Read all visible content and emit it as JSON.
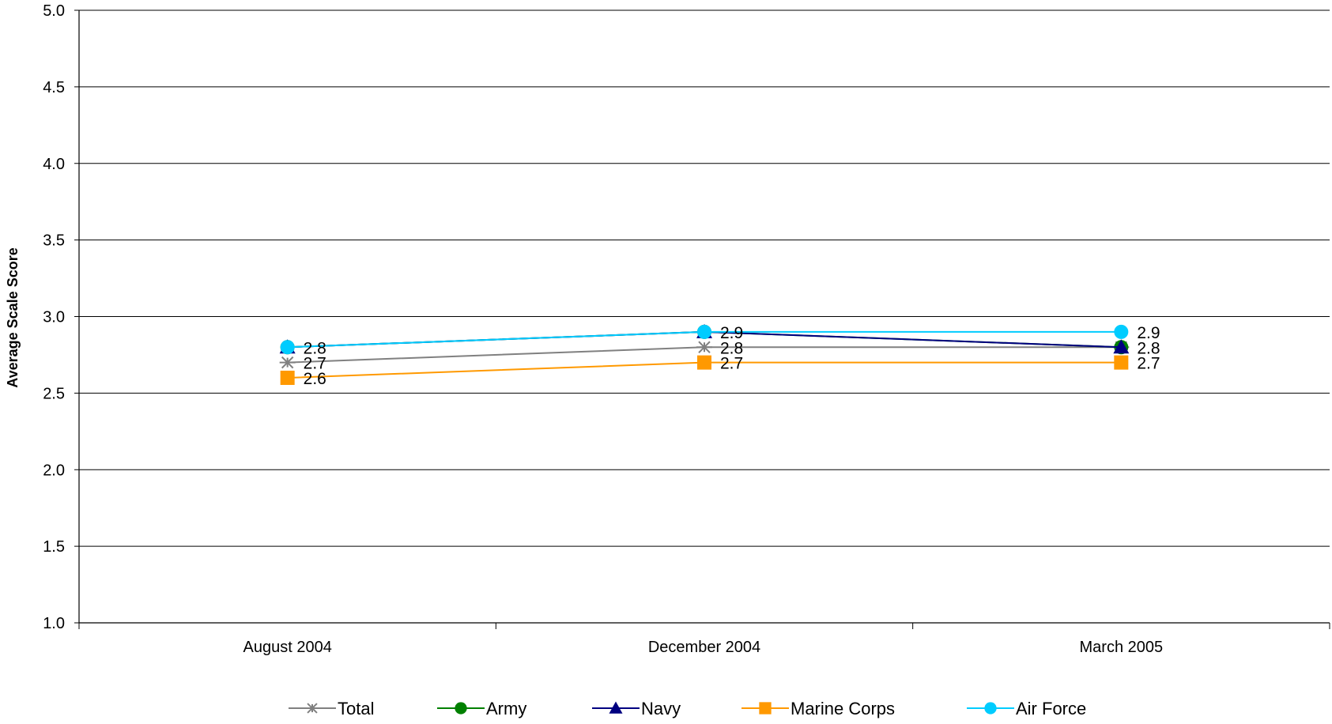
{
  "chart_data": {
    "type": "line",
    "title": "",
    "xlabel": "",
    "ylabel": "Average Scale Score",
    "categories": [
      "August 2004",
      "December 2004",
      "March 2005"
    ],
    "ylim": [
      1.0,
      5.0
    ],
    "yticks": [
      "1.0",
      "1.5",
      "2.0",
      "2.5",
      "3.0",
      "3.5",
      "4.0",
      "4.5",
      "5.0"
    ],
    "grid": true,
    "legend_position": "bottom",
    "series": [
      {
        "name": "Total",
        "values": [
          2.7,
          2.8,
          2.8
        ],
        "color": "#808080",
        "marker": "asterisk",
        "labels": [
          "2.7",
          "2.8",
          ""
        ]
      },
      {
        "name": "Army",
        "values": [
          2.8,
          2.9,
          2.8
        ],
        "color": "#008000",
        "marker": "circle",
        "labels": [
          "",
          "",
          ""
        ]
      },
      {
        "name": "Navy",
        "values": [
          2.8,
          2.9,
          2.8
        ],
        "color": "#000080",
        "marker": "triangle",
        "labels": [
          "",
          "",
          "2.8"
        ]
      },
      {
        "name": "Marine Corps",
        "values": [
          2.6,
          2.7,
          2.7
        ],
        "color": "#FF9900",
        "marker": "square",
        "labels": [
          "2.6",
          "2.7",
          "2.7"
        ]
      },
      {
        "name": "Air Force",
        "values": [
          2.8,
          2.9,
          2.9
        ],
        "color": "#00CCFF",
        "marker": "circle",
        "labels": [
          "2.8",
          "2.9",
          "2.9"
        ]
      }
    ]
  }
}
